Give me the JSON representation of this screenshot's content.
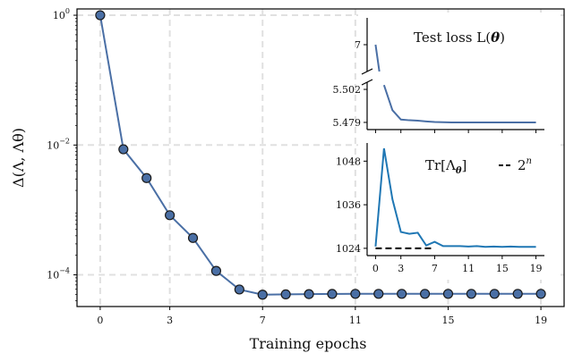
{
  "chart_data": [
    {
      "type": "line",
      "xlabel": "Training epochs",
      "ylabel": "Δ(Λ, Λθ)",
      "yscale": "log",
      "ylim": [
        3.25e-05,
        1.25
      ],
      "xlim": [
        -1,
        20
      ],
      "x_ticks": [
        0,
        3,
        7,
        11,
        15,
        19
      ],
      "y_ticks": [
        {
          "value": 1,
          "base": "10",
          "exp": "0"
        },
        {
          "value": 0.01,
          "base": "10",
          "exp": "−2"
        },
        {
          "value": 0.0001,
          "base": "10",
          "exp": "−4"
        }
      ],
      "grid": true,
      "series": [
        {
          "x": [
            0,
            1,
            2,
            3,
            4,
            5,
            6,
            7,
            8,
            9,
            10,
            11,
            12,
            13,
            14,
            15,
            16,
            17,
            18,
            19
          ],
          "values": [
            1.0,
            0.0086,
            0.0031,
            0.00083,
            0.00037,
            0.000115,
            5.95e-05,
            4.95e-05,
            5e-05,
            5.05e-05,
            5.08e-05,
            5.1e-05,
            5.1e-05,
            5.1e-05,
            5.1e-05,
            5.1e-05,
            5.1e-05,
            5.1e-05,
            5.1e-05,
            5.1e-05
          ],
          "color": "#4a6fa5"
        }
      ]
    },
    {
      "type": "line",
      "title": "Test loss L(θ)",
      "xlim": [
        -1,
        20
      ],
      "broken_axis": true,
      "upper_ylim": [
        6.85,
        7.15
      ],
      "lower_ylim": [
        5.474,
        5.507
      ],
      "y_ticks": [
        "7",
        "5.502",
        "5.479"
      ],
      "series": [
        {
          "x": [
            0,
            1,
            2,
            3,
            4,
            5,
            6,
            7,
            8,
            9,
            10,
            11,
            12,
            13,
            14,
            15,
            16,
            17,
            18,
            19
          ],
          "values": [
            7.0,
            5.505,
            5.4875,
            5.481,
            5.4805,
            5.4802,
            5.4797,
            5.4793,
            5.4791,
            5.479,
            5.479,
            5.479,
            5.479,
            5.479,
            5.479,
            5.479,
            5.479,
            5.479,
            5.479,
            5.479
          ],
          "color": "#4a6fa5"
        }
      ]
    },
    {
      "type": "line",
      "title": "Tr[Λθ]",
      "legend": "2^n",
      "xlim": [
        -1,
        20
      ],
      "ylim": [
        1022,
        1053
      ],
      "x_ticks": [
        0,
        3,
        7,
        11,
        15,
        19
      ],
      "y_ticks": [
        1024,
        1036,
        1048
      ],
      "series": [
        {
          "name": "Tr[Λθ]",
          "x": [
            0,
            1,
            2,
            3,
            4,
            5,
            6,
            7,
            8,
            9,
            10,
            11,
            12,
            13,
            14,
            15,
            16,
            17,
            18,
            19
          ],
          "values": [
            1024.5,
            1051.5,
            1037.5,
            1028.5,
            1028,
            1028.3,
            1024.8,
            1025.8,
            1024.6,
            1024.6,
            1024.6,
            1024.5,
            1024.6,
            1024.4,
            1024.5,
            1024.4,
            1024.5,
            1024.4,
            1024.4,
            1024.4
          ],
          "color": "#1f77b4"
        },
        {
          "name": "2^n",
          "x": [
            0,
            7
          ],
          "values": [
            1024,
            1024
          ],
          "color": "#000000",
          "dashed": true
        }
      ]
    }
  ]
}
